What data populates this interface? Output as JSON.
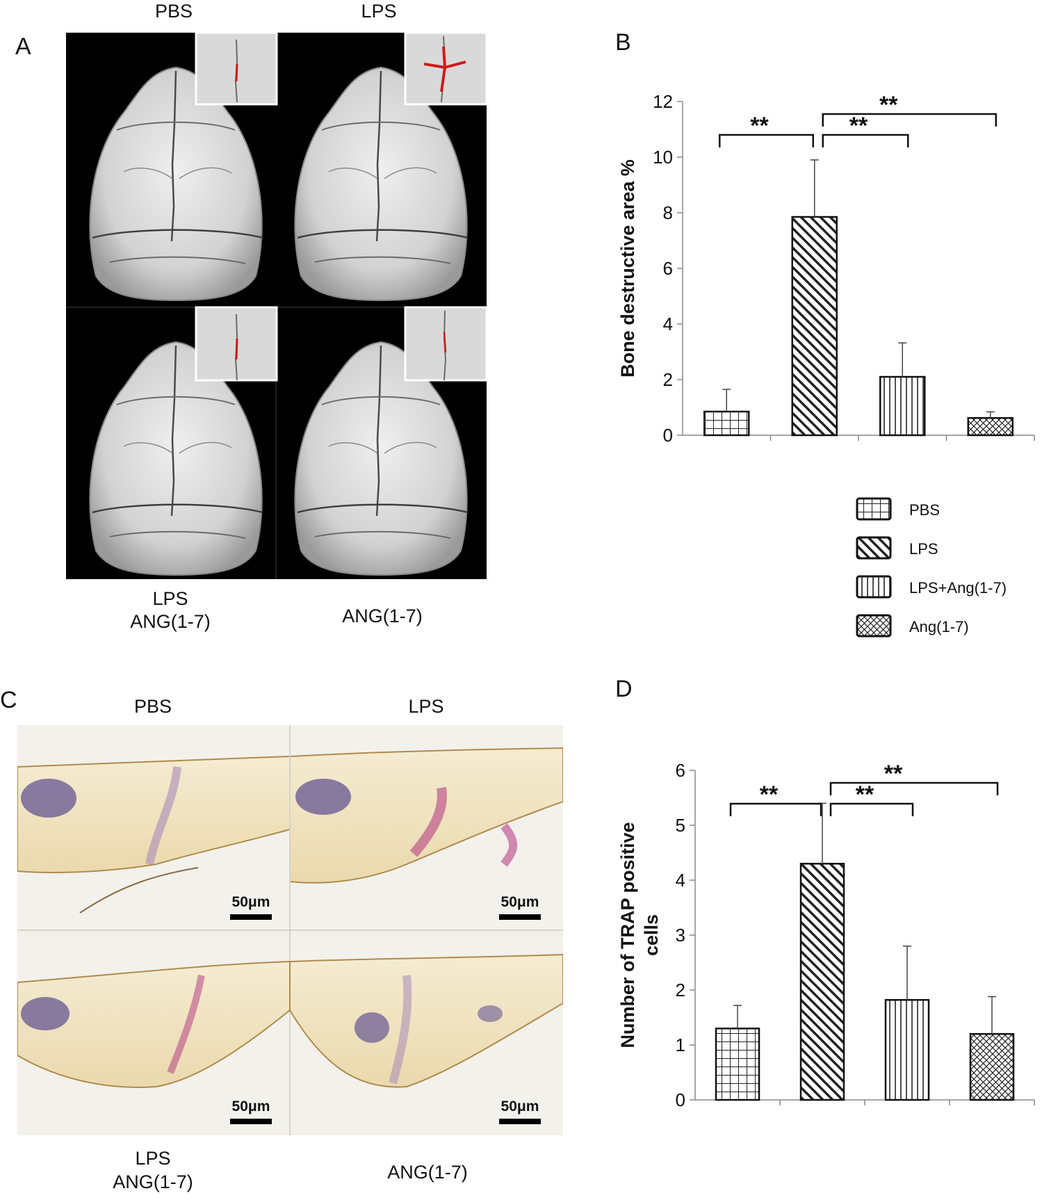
{
  "panel_a": {
    "letter": "A",
    "labels": {
      "top_left": "PBS",
      "top_right": "LPS",
      "bottom_left_line1": "LPS",
      "bottom_left_line2": "ANG(1-7)",
      "bottom_right": "ANG(1-7)"
    },
    "colors": {
      "background": "#000000",
      "bone": "#dcdcdc",
      "lesion": "#d0191b"
    }
  },
  "panel_c": {
    "letter": "C",
    "labels": {
      "top_left": "PBS",
      "top_right": "LPS",
      "bottom_left_line1": "LPS",
      "bottom_left_line2": "ANG(1-7)",
      "bottom_right": "ANG(1-7)"
    },
    "scale_bar": "50μm",
    "colors": {
      "background": "#f3f1ec",
      "bone": "#f1e6c6",
      "stain": "#b0317f",
      "nuclei": "#5b4b8f"
    }
  },
  "chart_data": [
    {
      "panel": "B",
      "type": "bar",
      "categories": [
        "PBS",
        "LPS",
        "LPS+Ang(1-7)",
        "Ang(1-7)"
      ],
      "values": [
        0.85,
        7.85,
        2.1,
        0.62
      ],
      "errors": [
        0.8,
        2.05,
        1.22,
        0.22
      ],
      "patterns": [
        "grid",
        "diagonal",
        "vertical",
        "crosshatch"
      ],
      "ylabel": "Bone destructive area %",
      "xlabel": "",
      "ylim": [
        0,
        12
      ],
      "yticks": [
        "0",
        "2",
        "4",
        "6",
        "8",
        "10",
        "12"
      ],
      "grid": false,
      "legend": {
        "position": "below",
        "entries": [
          "PBS",
          "LPS",
          "LPS+Ang(1-7)",
          "Ang(1-7)"
        ]
      },
      "significance": [
        {
          "from": 0,
          "to": 1,
          "label": "**"
        },
        {
          "from": 1,
          "to": 2,
          "label": "**"
        },
        {
          "from": 1,
          "to": 3,
          "label": "**"
        }
      ]
    },
    {
      "panel": "D",
      "type": "bar",
      "categories": [
        "PBS",
        "LPS",
        "LPS+Ang(1-7)",
        "Ang(1-7)"
      ],
      "values": [
        1.3,
        4.3,
        1.82,
        1.2
      ],
      "errors": [
        0.42,
        1.1,
        0.98,
        0.68
      ],
      "patterns": [
        "grid",
        "diagonal",
        "vertical",
        "crosshatch"
      ],
      "ylabel": "Number of TRAP positive cells",
      "xlabel": "",
      "ylim": [
        0,
        6
      ],
      "yticks": [
        "0",
        "1",
        "2",
        "3",
        "4",
        "5",
        "6"
      ],
      "grid": false,
      "significance": [
        {
          "from": 0,
          "to": 1,
          "label": "**"
        },
        {
          "from": 1,
          "to": 2,
          "label": "**"
        },
        {
          "from": 1,
          "to": 3,
          "label": "**"
        }
      ]
    }
  ]
}
